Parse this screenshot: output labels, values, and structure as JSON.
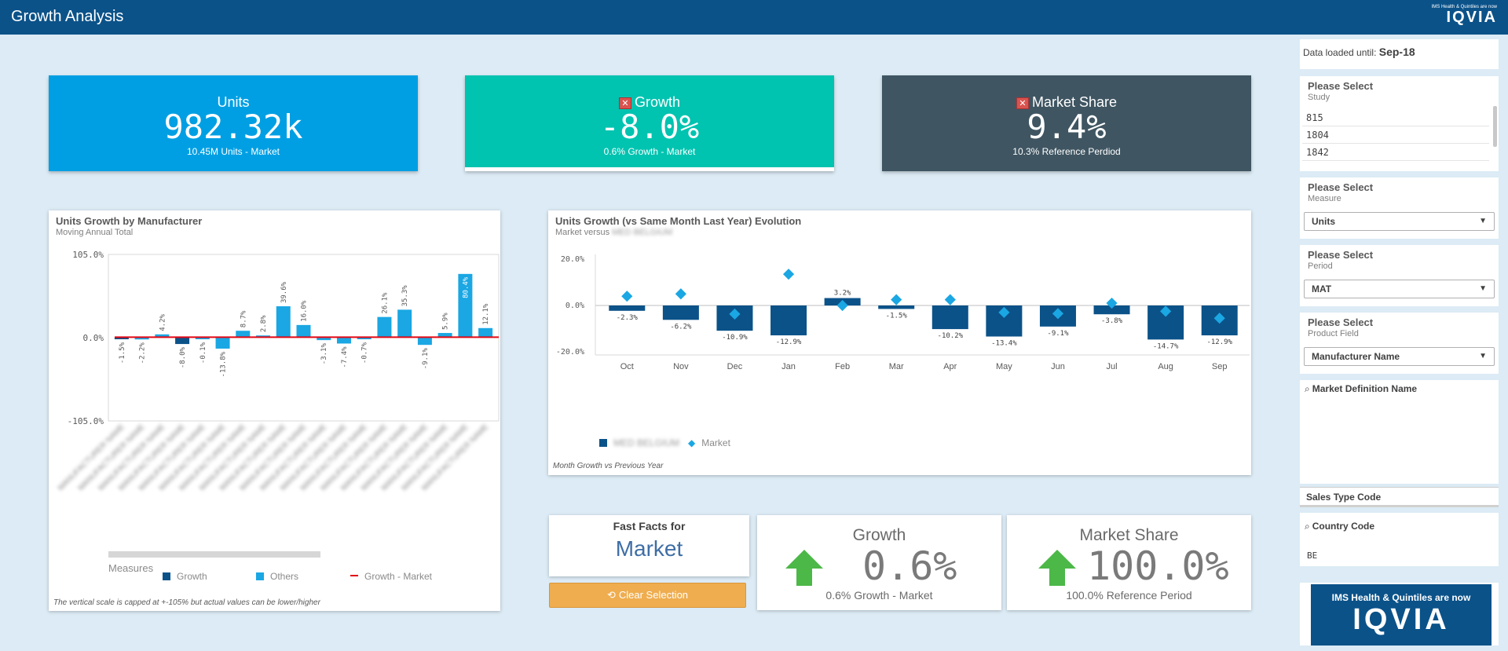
{
  "header": {
    "title": "Growth Analysis",
    "logo_small": "IMS Health & Quintiles are now",
    "logo_big": "IQVIA"
  },
  "kpis": [
    {
      "title": "Units",
      "value": "982.32k",
      "sub": "10.45M Units - Market",
      "color": "#009fe3",
      "has_x_icon": false
    },
    {
      "title": "Growth",
      "value": "-8.0%",
      "sub": "0.6% Growth - Market",
      "color": "#00c3b0",
      "has_x_icon": true
    },
    {
      "title": "Market Share",
      "value": "9.4%",
      "sub": "10.3% Reference Perdiod",
      "color": "#3f5562",
      "has_x_icon": true
    }
  ],
  "manufacturer_chart": {
    "title": "Units Growth by Manufacturer",
    "subtitle": "Moving Annual Total",
    "legend_title": "Measures",
    "legend": [
      "Growth",
      "Others",
      "Growth - Market"
    ],
    "footnote": "The vertical scale is capped at +-105% but actual values can be lower/higher"
  },
  "evolution_chart": {
    "title": "Units Growth (vs Same Month Last Year) Evolution",
    "subtitle": "Market versus",
    "legend_market": "Market",
    "footnote": "Month Growth vs Previous Year"
  },
  "chart_data": [
    {
      "type": "bar",
      "title": "Units Growth by Manufacturer",
      "ylim": [
        -105,
        105
      ],
      "yticks": [
        "105.0%",
        "0.0%",
        "-105.0%"
      ],
      "values": [
        -1.5,
        -2.2,
        4.2,
        -8.0,
        -0.1,
        -13.8,
        8.7,
        2.8,
        39.6,
        16.0,
        -3.1,
        -7.4,
        -0.7,
        26.1,
        35.3,
        -9.1,
        5.9,
        80.4,
        12.1
      ],
      "labels": [
        "-1.5%",
        "-2.2%",
        "4.2%",
        "-8.0%",
        "-0.1%",
        "-13.8%",
        "8.7%",
        "2.8%",
        "39.6%",
        "16.0%",
        "-3.1%",
        "-7.4%",
        "-0.7%",
        "26.1%",
        "35.3%",
        "-9.1%",
        "5.9%",
        "80.4%",
        "12.1%"
      ],
      "series_type": [
        "Growth",
        "Others",
        "Others",
        "Growth",
        "Others",
        "Others",
        "Others",
        "Others",
        "Others",
        "Others",
        "Others",
        "Others",
        "Others",
        "Others",
        "Others",
        "Others",
        "Others",
        "Others",
        "Others"
      ],
      "market_line": 0.6,
      "colors": {
        "Growth": "#0b5289",
        "Others": "#1aa7e3",
        "market": "#e30613"
      }
    },
    {
      "type": "bar",
      "title": "Units Growth (vs Same Month Last Year) Evolution",
      "categories": [
        "Oct",
        "Nov",
        "Dec",
        "Jan",
        "Feb",
        "Mar",
        "Apr",
        "May",
        "Jun",
        "Jul",
        "Aug",
        "Sep"
      ],
      "ylim": [
        -20,
        20
      ],
      "yticks": [
        "20.0%",
        "0.0%",
        "-20.0%"
      ],
      "bar_values": [
        -2.3,
        -6.2,
        -10.9,
        -12.9,
        3.2,
        -1.5,
        -10.2,
        -13.4,
        -9.1,
        -3.8,
        -14.7,
        -12.9
      ],
      "bar_labels": [
        "-2.3%",
        "-6.2%",
        "-10.9%",
        "-12.9%",
        "3.2%",
        "-1.5%",
        "-10.2%",
        "-13.4%",
        "-9.1%",
        "-3.8%",
        "-14.7%",
        "-12.9%"
      ],
      "market_values": [
        4.0,
        5.0,
        -3.7,
        13.5,
        0.0,
        2.5,
        2.5,
        -3.0,
        -3.5,
        1.0,
        -2.5,
        -5.5
      ],
      "colors": {
        "bars": "#0b5289",
        "market": "#1aa7e3"
      }
    }
  ],
  "fast_facts": {
    "label": "Fast Facts for",
    "value": "Market"
  },
  "clear_button": {
    "icon": "reset-icon",
    "label": "Clear Selection"
  },
  "facts": [
    {
      "title": "Growth",
      "value": "0.6%",
      "sub": "0.6% Growth - Market"
    },
    {
      "title": "Market Share",
      "value": "100.0%",
      "sub": "100.0% Reference Period"
    }
  ],
  "sidebar": {
    "data_loaded_label": "Data loaded until:",
    "data_loaded_value": "Sep-18",
    "study": {
      "head": "Please Select",
      "sub": "Study",
      "items": [
        "815",
        "1804",
        "1842"
      ]
    },
    "measure": {
      "head": "Please Select",
      "sub": "Measure",
      "value": "Units"
    },
    "period": {
      "head": "Please Select",
      "sub": "Period",
      "value": "MAT"
    },
    "product_field": {
      "head": "Please Select",
      "sub": "Product Field",
      "value": "Manufacturer Name"
    },
    "market_definition": "Market Definition Name",
    "sales_type": "Sales Type Code",
    "country": {
      "label": "Country Code",
      "value": "BE"
    },
    "logo_small": "IMS Health & Quintiles are now",
    "logo_big": "IQVIA"
  }
}
